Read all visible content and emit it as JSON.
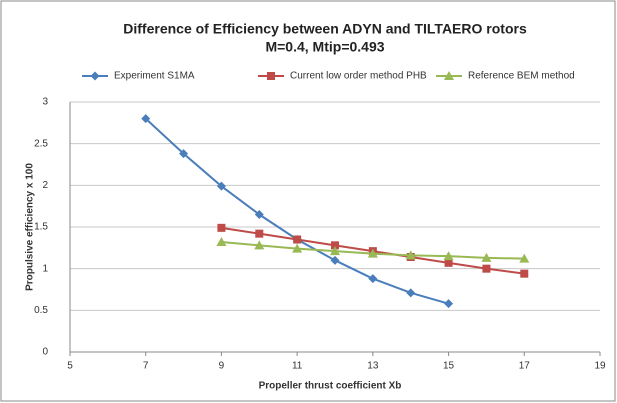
{
  "chart_data": {
    "type": "line",
    "title": "Difference of Efficiency between ADYN and TILTAERO rotors",
    "subtitle": "M=0.4, Mtip=0.493",
    "x_label": "Propeller thrust coefficient Xb",
    "y_label": "Propulsive efficiency x 100",
    "xlim": [
      5,
      19
    ],
    "xticks": [
      5,
      7,
      9,
      11,
      13,
      15,
      17,
      19
    ],
    "ylim": [
      0,
      3
    ],
    "yticks": [
      0,
      0.5,
      1,
      1.5,
      2,
      2.5,
      3
    ],
    "grid": true,
    "legend": "top",
    "series": [
      {
        "name": "Experiment S1MA",
        "color": "#4a7ebb",
        "marker": "diamond",
        "x": [
          7,
          8,
          9,
          10,
          11,
          12,
          13,
          14,
          15
        ],
        "values": [
          2.8,
          2.38,
          1.99,
          1.65,
          1.35,
          1.1,
          0.88,
          0.71,
          0.58
        ]
      },
      {
        "name": "Current low order method PHB",
        "color": "#be4b48",
        "marker": "square",
        "x": [
          9,
          10,
          11,
          12,
          13,
          14,
          15,
          16,
          17
        ],
        "values": [
          1.49,
          1.42,
          1.35,
          1.28,
          1.21,
          1.14,
          1.07,
          1.0,
          0.94
        ]
      },
      {
        "name": "Reference BEM method",
        "color": "#98b954",
        "marker": "triangle",
        "x": [
          9,
          10,
          11,
          12,
          13,
          14,
          15,
          16,
          17
        ],
        "values": [
          1.32,
          1.28,
          1.24,
          1.21,
          1.18,
          1.16,
          1.15,
          1.13,
          1.12
        ]
      }
    ]
  }
}
